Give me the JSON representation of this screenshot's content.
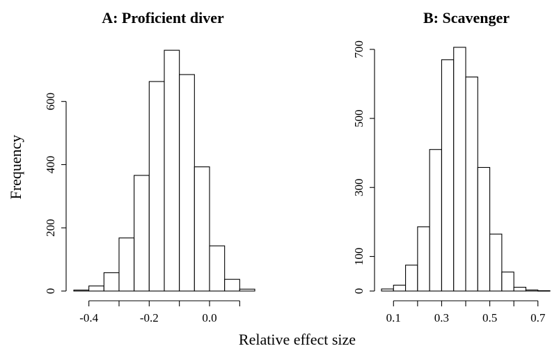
{
  "figure": {
    "xlabel": "Relative effect size",
    "ylabel": "Frequency"
  },
  "chart_data": [
    {
      "type": "bar",
      "title": "A: Proficient diver",
      "bin_edges": [
        -0.45,
        -0.4,
        -0.35,
        -0.3,
        -0.25,
        -0.2,
        -0.15,
        -0.1,
        -0.05,
        0.0,
        0.05,
        0.1,
        0.15
      ],
      "values": [
        3,
        16,
        58,
        168,
        366,
        663,
        762,
        685,
        393,
        143,
        37,
        6
      ],
      "xticks": [
        -0.4,
        -0.3,
        -0.2,
        -0.1,
        0.0,
        0.1
      ],
      "xtick_labels": [
        "-0.4",
        "",
        "-0.2",
        "",
        "0.0",
        ""
      ],
      "xlim": [
        -0.45,
        0.15
      ],
      "yticks": [
        0,
        200,
        400,
        600
      ],
      "ytick_labels": [
        "0",
        "200",
        "400",
        "600"
      ],
      "ylim": [
        0,
        780
      ],
      "grid": false
    },
    {
      "type": "bar",
      "title": "B: Scavenger",
      "bin_edges": [
        0.05,
        0.1,
        0.15,
        0.2,
        0.25,
        0.3,
        0.35,
        0.4,
        0.45,
        0.5,
        0.55,
        0.6,
        0.65,
        0.7,
        0.75
      ],
      "values": [
        6,
        17,
        75,
        186,
        410,
        670,
        706,
        620,
        358,
        165,
        55,
        11,
        3,
        1
      ],
      "xticks": [
        0.1,
        0.2,
        0.3,
        0.4,
        0.5,
        0.6,
        0.7
      ],
      "xtick_labels": [
        "0.1",
        "",
        "0.3",
        "",
        "0.5",
        "",
        "0.7"
      ],
      "xlim": [
        0.05,
        0.75
      ],
      "yticks": [
        0,
        100,
        300,
        500,
        700
      ],
      "ytick_labels": [
        "0",
        "100",
        "300",
        "500",
        "700"
      ],
      "ylim": [
        0,
        720
      ],
      "grid": false
    }
  ]
}
